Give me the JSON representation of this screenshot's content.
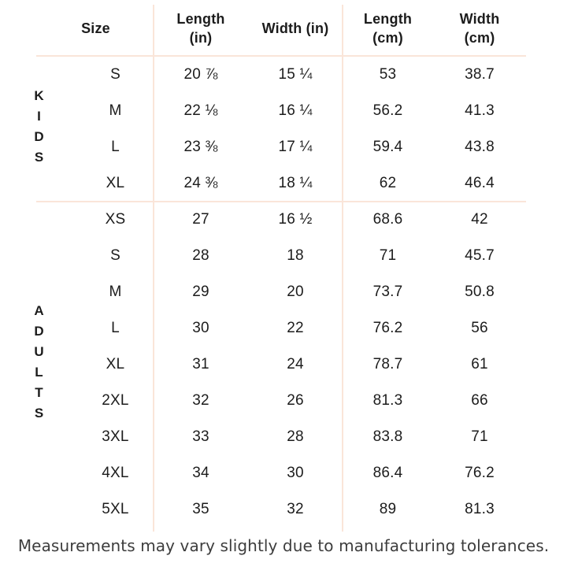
{
  "chart_data": {
    "type": "table",
    "columns": {
      "size": "Size",
      "length_in": "Length\n(in)",
      "width_in": "Width (in)",
      "length_cm": "Length\n(cm)",
      "width_cm": "Width\n(cm)"
    },
    "sections": [
      {
        "group": "KIDS",
        "rows": [
          {
            "size": "S",
            "length_in": "20 ⅞",
            "width_in": "15 ¼",
            "length_cm": "53",
            "width_cm": "38.7"
          },
          {
            "size": "M",
            "length_in": "22 ⅛",
            "width_in": "16 ¼",
            "length_cm": "56.2",
            "width_cm": "41.3"
          },
          {
            "size": "L",
            "length_in": "23 ⅜",
            "width_in": "17 ¼",
            "length_cm": "59.4",
            "width_cm": "43.8"
          },
          {
            "size": "XL",
            "length_in": "24 ⅜",
            "width_in": "18 ¼",
            "length_cm": "62",
            "width_cm": "46.4"
          }
        ]
      },
      {
        "group": "ADULTS",
        "rows": [
          {
            "size": "XS",
            "length_in": "27",
            "width_in": "16 ½",
            "length_cm": "68.6",
            "width_cm": "42"
          },
          {
            "size": "S",
            "length_in": "28",
            "width_in": "18",
            "length_cm": "71",
            "width_cm": "45.7"
          },
          {
            "size": "M",
            "length_in": "29",
            "width_in": "20",
            "length_cm": "73.7",
            "width_cm": "50.8"
          },
          {
            "size": "L",
            "length_in": "30",
            "width_in": "22",
            "length_cm": "76.2",
            "width_cm": "56"
          },
          {
            "size": "XL",
            "length_in": "31",
            "width_in": "24",
            "length_cm": "78.7",
            "width_cm": "61"
          },
          {
            "size": "2XL",
            "length_in": "32",
            "width_in": "26",
            "length_cm": "81.3",
            "width_cm": "66"
          },
          {
            "size": "3XL",
            "length_in": "33",
            "width_in": "28",
            "length_cm": "83.8",
            "width_cm": "71"
          },
          {
            "size": "4XL",
            "length_in": "34",
            "width_in": "30",
            "length_cm": "86.4",
            "width_cm": "76.2"
          },
          {
            "size": "5XL",
            "length_in": "35",
            "width_in": "32",
            "length_cm": "89",
            "width_cm": "81.3"
          }
        ]
      }
    ],
    "footnote": "Measurements may vary slightly due to manufacturing tolerances."
  },
  "colors": {
    "background": "#ffffff",
    "divider": "#fae5d9",
    "text": "#1c1c1c",
    "footnote_text": "#3d3d3d"
  }
}
